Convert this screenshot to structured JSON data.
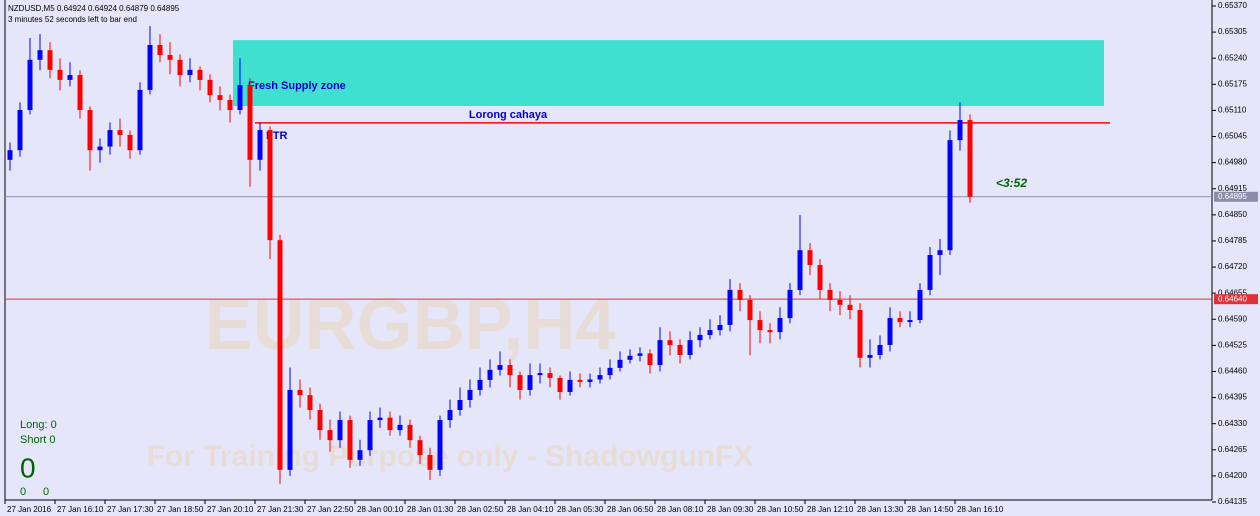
{
  "chart_data": {
    "type": "candlestick",
    "header": "NZDUSD,M5  0.64924 0.64924 0.64879 0.64895",
    "subheader": "3 minutes 52 seconds left to bar end",
    "watermark": "EURGBP,H4",
    "footer_watermark": "For Training Purpose only - ShadowgunFX",
    "up_color": "#0000ff",
    "down_color": "#ff0000",
    "ylim": [
      0.64135,
      0.6537
    ],
    "yticks": [
      {
        "value": 0.6537,
        "label": "0.65370"
      },
      {
        "value": 0.65305,
        "label": "0.65305"
      },
      {
        "value": 0.6524,
        "label": "0.65240"
      },
      {
        "value": 0.65175,
        "label": "0.65175"
      },
      {
        "value": 0.6511,
        "label": "0.65110"
      },
      {
        "value": 0.65045,
        "label": "0.65045"
      },
      {
        "value": 0.6498,
        "label": "0.64980"
      },
      {
        "value": 0.64915,
        "label": "0.64915"
      },
      {
        "value": 0.6485,
        "label": "0.64850"
      },
      {
        "value": 0.64785,
        "label": "0.64785"
      },
      {
        "value": 0.6472,
        "label": "0.64720"
      },
      {
        "value": 0.64655,
        "label": "0.64655"
      },
      {
        "value": 0.6459,
        "label": "0.64590"
      },
      {
        "value": 0.64525,
        "label": "0.64525"
      },
      {
        "value": 0.6446,
        "label": "0.64460"
      },
      {
        "value": 0.64395,
        "label": "0.64395"
      },
      {
        "value": 0.6433,
        "label": "0.64330"
      },
      {
        "value": 0.64265,
        "label": "0.64265"
      },
      {
        "value": 0.642,
        "label": "0.64200"
      },
      {
        "value": 0.64135,
        "label": "0.64135"
      }
    ],
    "categories": [
      "27 Jan 2016",
      "27 Jan 16:10",
      "27 Jan 17:30",
      "27 Jan 18:50",
      "27 Jan 20:10",
      "27 Jan 21:30",
      "27 Jan 22:50",
      "28 Jan 00:10",
      "28 Jan 01:30",
      "28 Jan 02:50",
      "28 Jan 04:10",
      "28 Jan 05:30",
      "28 Jan 06:50",
      "28 Jan 08:10",
      "28 Jan 09:30",
      "28 Jan 10:50",
      "28 Jan 12:10",
      "28 Jan 13:30",
      "28 Jan 14:50",
      "28 Jan 16:10"
    ],
    "candles": [
      [
        0.64987,
        0.6503,
        0.6496,
        0.65011
      ],
      [
        0.65011,
        0.6513,
        0.64995,
        0.65111
      ],
      [
        0.65111,
        0.6529,
        0.651,
        0.65236
      ],
      [
        0.65236,
        0.653,
        0.6521,
        0.6526
      ],
      [
        0.6526,
        0.6528,
        0.6519,
        0.65211
      ],
      [
        0.65211,
        0.6524,
        0.6516,
        0.65186
      ],
      [
        0.65186,
        0.6523,
        0.6517,
        0.65198
      ],
      [
        0.65198,
        0.6521,
        0.6509,
        0.65111
      ],
      [
        0.65111,
        0.6512,
        0.6496,
        0.65011
      ],
      [
        0.65011,
        0.6504,
        0.6498,
        0.6502
      ],
      [
        0.6502,
        0.6508,
        0.65,
        0.65061
      ],
      [
        0.65061,
        0.6509,
        0.6502,
        0.65049
      ],
      [
        0.65049,
        0.6506,
        0.6499,
        0.65011
      ],
      [
        0.65011,
        0.6518,
        0.65,
        0.65161
      ],
      [
        0.65161,
        0.6532,
        0.6515,
        0.65273
      ],
      [
        0.65273,
        0.653,
        0.6523,
        0.65248
      ],
      [
        0.65248,
        0.6528,
        0.652,
        0.65236
      ],
      [
        0.65236,
        0.6525,
        0.6517,
        0.65198
      ],
      [
        0.65198,
        0.6524,
        0.6518,
        0.65211
      ],
      [
        0.65211,
        0.6522,
        0.6516,
        0.65186
      ],
      [
        0.65186,
        0.652,
        0.6513,
        0.65148
      ],
      [
        0.65148,
        0.6517,
        0.6511,
        0.65136
      ],
      [
        0.65136,
        0.6515,
        0.6508,
        0.65111
      ],
      [
        0.65111,
        0.6524,
        0.651,
        0.65173
      ],
      [
        0.65173,
        0.6519,
        0.6492,
        0.64987
      ],
      [
        0.64987,
        0.6508,
        0.6496,
        0.65061
      ],
      [
        0.65061,
        0.6507,
        0.6474,
        0.64787
      ],
      [
        0.64787,
        0.648,
        0.6418,
        0.64215
      ],
      [
        0.64215,
        0.6447,
        0.642,
        0.64414
      ],
      [
        0.64414,
        0.6444,
        0.6437,
        0.64401
      ],
      [
        0.64401,
        0.6442,
        0.6434,
        0.64364
      ],
      [
        0.64364,
        0.6438,
        0.6429,
        0.64314
      ],
      [
        0.64314,
        0.6434,
        0.6426,
        0.64289
      ],
      [
        0.64289,
        0.6436,
        0.6427,
        0.64339
      ],
      [
        0.64339,
        0.6435,
        0.6422,
        0.6424
      ],
      [
        0.6424,
        0.6429,
        0.64225,
        0.64264
      ],
      [
        0.64264,
        0.6436,
        0.6425,
        0.64339
      ],
      [
        0.64339,
        0.6437,
        0.6432,
        0.64345
      ],
      [
        0.64345,
        0.6436,
        0.643,
        0.64314
      ],
      [
        0.64314,
        0.6435,
        0.643,
        0.64327
      ],
      [
        0.64327,
        0.6434,
        0.6427,
        0.64289
      ],
      [
        0.64289,
        0.643,
        0.6423,
        0.64252
      ],
      [
        0.64252,
        0.6427,
        0.6419,
        0.64215
      ],
      [
        0.64215,
        0.6435,
        0.642,
        0.64339
      ],
      [
        0.64339,
        0.6439,
        0.6432,
        0.64364
      ],
      [
        0.64364,
        0.6442,
        0.6435,
        0.64389
      ],
      [
        0.64389,
        0.6444,
        0.6437,
        0.64414
      ],
      [
        0.64414,
        0.6447,
        0.644,
        0.64439
      ],
      [
        0.64439,
        0.6449,
        0.6442,
        0.64464
      ],
      [
        0.64464,
        0.6451,
        0.6445,
        0.64476
      ],
      [
        0.64476,
        0.6449,
        0.6442,
        0.64451
      ],
      [
        0.64451,
        0.6446,
        0.6439,
        0.64414
      ],
      [
        0.64414,
        0.6448,
        0.644,
        0.64451
      ],
      [
        0.64451,
        0.6448,
        0.6443,
        0.64456
      ],
      [
        0.64456,
        0.6447,
        0.6442,
        0.64444
      ],
      [
        0.64444,
        0.6445,
        0.6439,
        0.64409
      ],
      [
        0.64409,
        0.6446,
        0.644,
        0.64439
      ],
      [
        0.64439,
        0.64455,
        0.6442,
        0.64434
      ],
      [
        0.64434,
        0.64455,
        0.6442,
        0.6444
      ],
      [
        0.6444,
        0.6447,
        0.6443,
        0.64451
      ],
      [
        0.64451,
        0.6449,
        0.6444,
        0.64469
      ],
      [
        0.64469,
        0.6451,
        0.6446,
        0.64489
      ],
      [
        0.64489,
        0.64515,
        0.6448,
        0.64499
      ],
      [
        0.64499,
        0.6452,
        0.64485,
        0.64505
      ],
      [
        0.64505,
        0.64515,
        0.64455,
        0.64476
      ],
      [
        0.64476,
        0.6457,
        0.6446,
        0.64538
      ],
      [
        0.64538,
        0.6456,
        0.645,
        0.64526
      ],
      [
        0.64526,
        0.6454,
        0.6448,
        0.64501
      ],
      [
        0.64501,
        0.6456,
        0.6449,
        0.64538
      ],
      [
        0.64538,
        0.6457,
        0.6452,
        0.64551
      ],
      [
        0.64551,
        0.6459,
        0.6454,
        0.64563
      ],
      [
        0.64563,
        0.646,
        0.6455,
        0.64576
      ],
      [
        0.64576,
        0.6469,
        0.6456,
        0.64663
      ],
      [
        0.64663,
        0.6468,
        0.6461,
        0.64638
      ],
      [
        0.64638,
        0.6465,
        0.645,
        0.64588
      ],
      [
        0.64588,
        0.6461,
        0.6453,
        0.64563
      ],
      [
        0.64563,
        0.6458,
        0.6453,
        0.64558
      ],
      [
        0.64558,
        0.6462,
        0.6454,
        0.64593
      ],
      [
        0.64593,
        0.6468,
        0.6458,
        0.64663
      ],
      [
        0.64663,
        0.6485,
        0.6465,
        0.64762
      ],
      [
        0.64762,
        0.6478,
        0.647,
        0.64725
      ],
      [
        0.64725,
        0.6474,
        0.6464,
        0.64663
      ],
      [
        0.64663,
        0.6468,
        0.6461,
        0.64638
      ],
      [
        0.64638,
        0.6466,
        0.646,
        0.64626
      ],
      [
        0.64626,
        0.6465,
        0.6459,
        0.64613
      ],
      [
        0.64613,
        0.6463,
        0.6447,
        0.64494
      ],
      [
        0.64494,
        0.6454,
        0.6447,
        0.64501
      ],
      [
        0.64501,
        0.6455,
        0.6449,
        0.64526
      ],
      [
        0.64526,
        0.6462,
        0.6451,
        0.64593
      ],
      [
        0.64593,
        0.6461,
        0.6457,
        0.64583
      ],
      [
        0.64583,
        0.6461,
        0.6457,
        0.64588
      ],
      [
        0.64588,
        0.6468,
        0.6458,
        0.64663
      ],
      [
        0.64663,
        0.6477,
        0.6465,
        0.6475
      ],
      [
        0.6475,
        0.6479,
        0.647,
        0.64762
      ],
      [
        0.64762,
        0.6506,
        0.6475,
        0.65036
      ],
      [
        0.65036,
        0.6513,
        0.6501,
        0.65086
      ],
      [
        0.65086,
        0.651,
        0.6488,
        0.64895
      ]
    ],
    "zone": {
      "label": "Fresh Supply zone",
      "top": 0.65285,
      "bottom": 0.65121,
      "color": "#40e0d0"
    },
    "trendline": {
      "label": "Lorong cahaya",
      "value": 0.65079,
      "color": "#ff0000",
      "marker": "FTR"
    },
    "levels": [
      {
        "value": 0.64895,
        "label": "0.64895",
        "color": "#8c8caa"
      },
      {
        "value": 0.6464,
        "label": "0.64640",
        "color": "#e0303a"
      }
    ],
    "timer": "<3:52",
    "counters": {
      "long": "Long:  0",
      "short": "Short  0",
      "total": "0",
      "a": "0",
      "b": "0"
    }
  }
}
